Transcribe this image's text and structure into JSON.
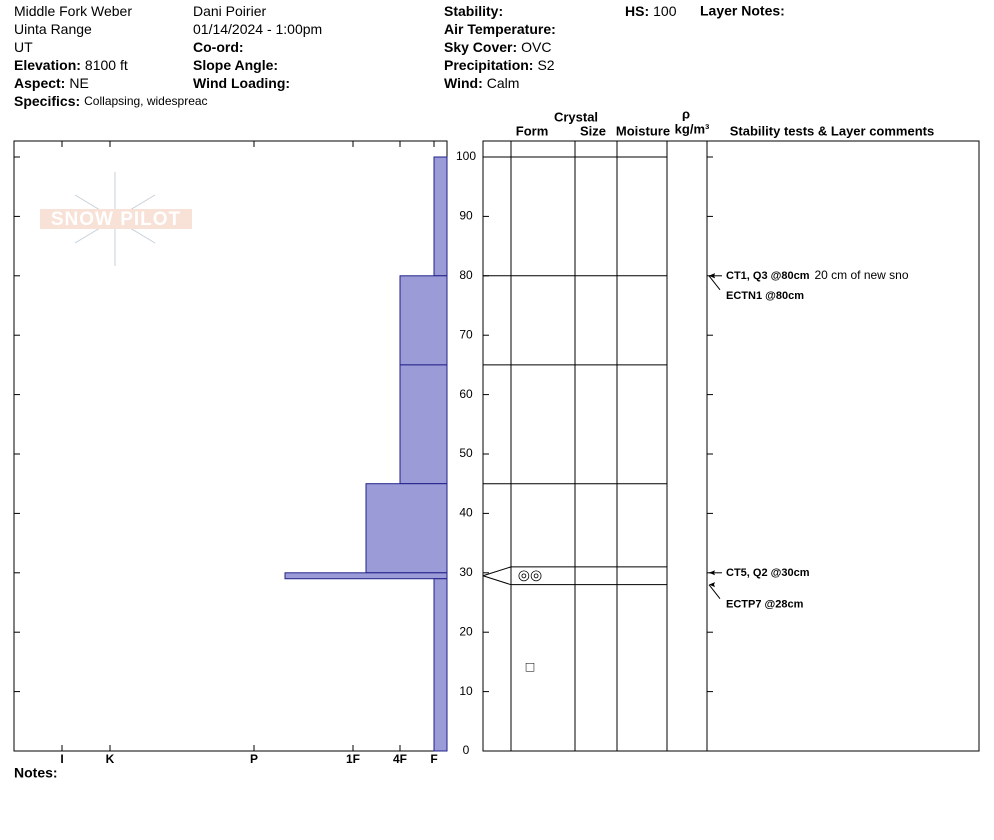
{
  "header": {
    "col1": [
      {
        "value": "Middle Fork Weber"
      },
      {
        "value": "Uinta Range"
      },
      {
        "value": "UT"
      },
      {
        "label": "Elevation:",
        "value": "8100 ft"
      },
      {
        "label": "Aspect:",
        "value": "NE"
      },
      {
        "label": "Specifics:",
        "value": "Collapsing, widespreac"
      }
    ],
    "col2": [
      {
        "value": "Dani Poirier"
      },
      {
        "value": "01/14/2024 - 1:00pm"
      },
      {
        "label": "Co-ord:"
      },
      {
        "label": "Slope Angle:"
      },
      {
        "label": "Wind Loading:"
      }
    ],
    "col3": [
      {
        "label": "Stability:"
      },
      {
        "label": "Air Temperature:"
      },
      {
        "label": "Sky Cover:",
        "value": "OVC"
      },
      {
        "label": "Precipitation:",
        "value": "S2"
      },
      {
        "label": "Wind:",
        "value": "Calm"
      }
    ],
    "hs": {
      "label": "HS:",
      "value": "100"
    },
    "layer_notes": "Layer Notes:"
  },
  "logo": "SNOW PILOT",
  "notes": "Notes:",
  "columns": {
    "crystal": "Crystal",
    "form": "Form",
    "size": "Size",
    "moisture": "Moisture",
    "rho": "ρ",
    "density": "kg/m³",
    "tests": "Stability tests & Layer comments"
  },
  "chart_data": {
    "type": "snow-profile",
    "xlim": [
      0,
      433
    ],
    "x_reversed": true,
    "xticks": [
      {
        "value": 385,
        "label": "I"
      },
      {
        "value": 337,
        "label": "K"
      },
      {
        "value": 193,
        "label": "P"
      },
      {
        "value": 94,
        "label": "1F"
      },
      {
        "value": 47,
        "label": "4F"
      },
      {
        "value": 13,
        "label": "F"
      }
    ],
    "ylim": [
      0,
      100
    ],
    "yticks": [
      0,
      10,
      20,
      30,
      40,
      50,
      60,
      70,
      80,
      90,
      100
    ],
    "color": "#9b9bd8",
    "layers": [
      {
        "top": 100,
        "bottom": 80,
        "hardness": 13
      },
      {
        "top": 80,
        "bottom": 65,
        "hardness": 47
      },
      {
        "top": 65,
        "bottom": 45,
        "hardness": 47
      },
      {
        "top": 45,
        "bottom": 30,
        "hardness": 81
      },
      {
        "top": 30,
        "bottom": 29,
        "hardness": 162
      },
      {
        "top": 29,
        "bottom": 0,
        "hardness": 13
      }
    ],
    "strata": [
      {
        "top": 100,
        "bottom": 80
      },
      {
        "top": 80,
        "bottom": 65
      },
      {
        "top": 65,
        "bottom": 45
      },
      {
        "top": 45,
        "bottom": 31
      },
      {
        "top": 31,
        "bottom": 28,
        "form": "◎◎"
      },
      {
        "top": 28,
        "bottom": 0,
        "form": "□"
      }
    ],
    "tests": [
      {
        "label": "CT1, Q3 @80cm",
        "depth": 80,
        "comment": "20 cm of new sno"
      },
      {
        "label": "ECTN1 @80cm",
        "depth": 80
      },
      {
        "label": "CT5, Q2 @30cm",
        "depth": 30
      },
      {
        "label": "ECTP7 @28cm",
        "depth": 28
      }
    ]
  }
}
